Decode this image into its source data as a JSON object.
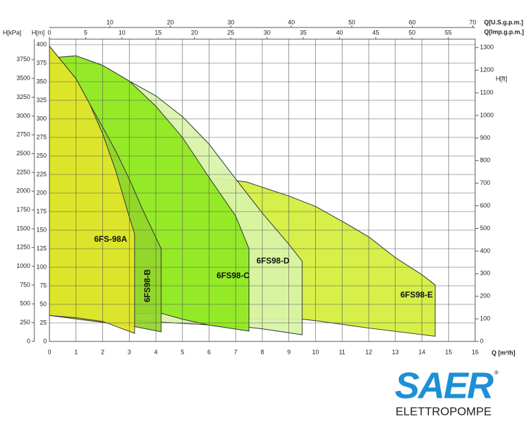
{
  "chart_data": {
    "type": "area",
    "y_label": "H[m]",
    "y_kpa_label": "H[kPa]",
    "y_ft_label": "H[ft]",
    "x_label": "Q [m³/h]",
    "x_usgpm_label": "Q[U.S.g.p.m.]",
    "x_impgpm_label": "Q[Imp.g.p.m.]",
    "xlim": [
      0,
      16
    ],
    "xticks": [
      0,
      1,
      2,
      3,
      4,
      5,
      6,
      7,
      8,
      9,
      10,
      11,
      12,
      13,
      14,
      15,
      16
    ],
    "ylim": [
      0,
      400
    ],
    "yticks": [
      0,
      25,
      50,
      75,
      100,
      125,
      150,
      175,
      200,
      225,
      250,
      275,
      300,
      325,
      350,
      375,
      400
    ],
    "y_kpa_lim": [
      0,
      3950
    ],
    "y_kpa_ticks": [
      0,
      250,
      500,
      750,
      1000,
      1250,
      1500,
      1750,
      2000,
      2250,
      2500,
      2750,
      3000,
      3250,
      3500,
      3750
    ],
    "y_ft_lim": [
      0,
      1313
    ],
    "y_ft_ticks": [
      0,
      100,
      200,
      300,
      400,
      500,
      600,
      700,
      800,
      900,
      1000,
      1100,
      1200,
      1300
    ],
    "x_usgpm_lim": [
      0,
      70.4
    ],
    "x_usgpm_ticks": [
      10,
      20,
      30,
      40,
      50,
      60,
      70
    ],
    "x_impgpm_lim": [
      0,
      58.7
    ],
    "x_impgpm_ticks": [
      0,
      5,
      10,
      15,
      20,
      25,
      30,
      35,
      40,
      45,
      50,
      55
    ],
    "grid": true,
    "series": [
      {
        "name": "6FS98-E",
        "color": "#d2ee3a",
        "x": [
          6,
          7.4,
          9,
          10,
          11,
          12,
          13,
          14,
          14.5,
          14.5,
          12,
          10,
          9.5,
          6
        ],
        "values": [
          221,
          215,
          196,
          182,
          162,
          141,
          113,
          90,
          76,
          7,
          18,
          28,
          30,
          30
        ]
      },
      {
        "name": "6FS98-D",
        "color": "#d8f4a8",
        "x": [
          0,
          1,
          2,
          3,
          4,
          5,
          6,
          7,
          8,
          9,
          9.5,
          9.5,
          8,
          7.5,
          0
        ],
        "values": [
          382,
          385,
          372,
          351,
          331,
          303,
          266,
          219,
          173,
          131,
          108,
          9,
          17,
          19,
          35
        ]
      },
      {
        "name": "6FS98-C",
        "color": "#8fe81c",
        "x": [
          0,
          1,
          2,
          3,
          4,
          5,
          6,
          7,
          7.5,
          7.5,
          6,
          5,
          4.2,
          0
        ],
        "values": [
          382,
          385,
          372,
          351,
          317,
          275,
          221,
          169,
          125,
          14,
          22,
          30,
          38,
          35
        ]
      },
      {
        "name": "6FS98-B",
        "color": "#92d52a",
        "x": [
          0,
          1,
          1.5,
          2,
          2.5,
          3,
          3.5,
          4.2,
          4.2,
          3.2,
          0
        ],
        "values": [
          398,
          354,
          321,
          289,
          256,
          219,
          178,
          125,
          13,
          20,
          35
        ]
      },
      {
        "name": "6FS-98A",
        "color": "#e3e62a",
        "x": [
          0,
          1,
          1.5,
          2,
          2.5,
          3,
          3.2,
          3.2,
          2,
          1,
          0
        ],
        "values": [
          398,
          354,
          321,
          280,
          229,
          168,
          145,
          11,
          27,
          32,
          35
        ]
      }
    ]
  },
  "logo": {
    "name": "SAER",
    "sub": "ELETTROPOMPE",
    "mark": "®"
  }
}
